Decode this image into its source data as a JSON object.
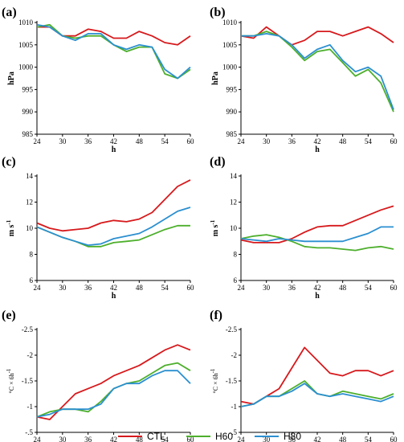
{
  "colors": {
    "CTL": "#d7191c",
    "H60": "#4daf2c",
    "H80": "#2b8fd0"
  },
  "legend": {
    "placement": "bottom-center",
    "entries": [
      {
        "name": "CTL",
        "color": "#d7191c"
      },
      {
        "name": "H60",
        "color": "#4daf2c"
      },
      {
        "name": "H80",
        "color": "#2b8fd0"
      }
    ]
  },
  "chart_data": [
    {
      "label": "(a)",
      "type": "line",
      "xlabel": "h",
      "ylabel": "hPa",
      "ylabel_sub": "",
      "ylim": [
        985,
        1010
      ],
      "yticks": [
        985,
        990,
        995,
        1000,
        1005,
        1010
      ],
      "ytick_labels": [
        "985",
        "990",
        "995",
        "1000",
        "1005",
        "1010"
      ],
      "xlim": [
        24,
        60
      ],
      "xticks": [
        24,
        30,
        36,
        42,
        48,
        54,
        60
      ],
      "series": [
        {
          "name": "CTL",
          "x": [
            24,
            27,
            30,
            33,
            36,
            39,
            42,
            45,
            48,
            51,
            54,
            57,
            60
          ],
          "y": [
            1009,
            1009,
            1007,
            1007,
            1008.5,
            1008,
            1006.5,
            1006.5,
            1008,
            1007,
            1005.5,
            1005,
            1007
          ]
        },
        {
          "name": "H60",
          "x": [
            24,
            27,
            30,
            33,
            36,
            39,
            42,
            45,
            48,
            51,
            54,
            57,
            60
          ],
          "y": [
            1009,
            1009.5,
            1007,
            1006.5,
            1007,
            1007,
            1005,
            1003.5,
            1004.5,
            1004.5,
            998.5,
            997.5,
            999.5
          ]
        },
        {
          "name": "H80",
          "x": [
            24,
            27,
            30,
            33,
            36,
            39,
            42,
            45,
            48,
            51,
            54,
            57,
            60
          ],
          "y": [
            1009.5,
            1009,
            1007,
            1006,
            1007.5,
            1007.5,
            1005,
            1004,
            1005,
            1004.5,
            999.5,
            997.5,
            1000
          ]
        }
      ]
    },
    {
      "label": "(b)",
      "type": "line",
      "xlabel": "h",
      "ylabel": "hPa",
      "ylabel_sub": "",
      "ylim": [
        985,
        1010
      ],
      "yticks": [
        985,
        990,
        995,
        1000,
        1005,
        1010
      ],
      "ytick_labels": [
        "985",
        "990",
        "995",
        "1000",
        "1005",
        "1010"
      ],
      "xlim": [
        24,
        60
      ],
      "xticks": [
        24,
        30,
        36,
        42,
        48,
        54,
        60
      ],
      "series": [
        {
          "name": "CTL",
          "x": [
            24,
            27,
            30,
            33,
            36,
            39,
            42,
            45,
            48,
            51,
            54,
            57,
            60
          ],
          "y": [
            1007,
            1006.5,
            1009,
            1007,
            1005,
            1006,
            1008,
            1008,
            1007,
            1008,
            1009,
            1007.5,
            1005.5
          ]
        },
        {
          "name": "H60",
          "x": [
            24,
            27,
            30,
            33,
            36,
            39,
            42,
            45,
            48,
            51,
            54,
            57,
            60
          ],
          "y": [
            1007,
            1007,
            1008,
            1007,
            1004.5,
            1001.5,
            1003.5,
            1004,
            1001,
            998,
            999.5,
            996.5,
            990
          ]
        },
        {
          "name": "H80",
          "x": [
            24,
            27,
            30,
            33,
            36,
            39,
            42,
            45,
            48,
            51,
            54,
            57,
            60
          ],
          "y": [
            1007,
            1007,
            1007.5,
            1007,
            1005,
            1002,
            1004,
            1005,
            1001.5,
            999,
            1000,
            998,
            990.5
          ]
        }
      ]
    },
    {
      "label": "(c)",
      "type": "line",
      "xlabel": "h",
      "ylabel": "m s",
      "ylabel_sub": "-1",
      "ylim": [
        6,
        14
      ],
      "yticks": [
        6,
        8,
        10,
        12,
        14
      ],
      "ytick_labels": [
        "6",
        "8",
        "10",
        "12",
        "14"
      ],
      "xlim": [
        24,
        60
      ],
      "xticks": [
        24,
        30,
        36,
        42,
        48,
        54,
        60
      ],
      "series": [
        {
          "name": "CTL",
          "x": [
            24,
            27,
            30,
            33,
            36,
            39,
            42,
            45,
            48,
            51,
            54,
            57,
            60
          ],
          "y": [
            10.4,
            10.0,
            9.8,
            9.9,
            10.0,
            10.4,
            10.6,
            10.5,
            10.7,
            11.2,
            12.2,
            13.2,
            13.7
          ]
        },
        {
          "name": "H60",
          "x": [
            24,
            27,
            30,
            33,
            36,
            39,
            42,
            45,
            48,
            51,
            54,
            57,
            60
          ],
          "y": [
            10.1,
            9.7,
            9.3,
            9.0,
            8.6,
            8.6,
            8.9,
            9.0,
            9.1,
            9.5,
            9.9,
            10.2,
            10.2
          ]
        },
        {
          "name": "H80",
          "x": [
            24,
            27,
            30,
            33,
            36,
            39,
            42,
            45,
            48,
            51,
            54,
            57,
            60
          ],
          "y": [
            10.1,
            9.7,
            9.3,
            9.0,
            8.7,
            8.8,
            9.2,
            9.4,
            9.6,
            10.1,
            10.7,
            11.3,
            11.6
          ]
        }
      ]
    },
    {
      "label": "(d)",
      "type": "line",
      "xlabel": "h",
      "ylabel": "m s",
      "ylabel_sub": "-1",
      "ylim": [
        6,
        14
      ],
      "yticks": [
        6,
        8,
        10,
        12,
        14
      ],
      "ytick_labels": [
        "6",
        "8",
        "10",
        "12",
        "14"
      ],
      "xlim": [
        24,
        60
      ],
      "xticks": [
        24,
        30,
        36,
        42,
        48,
        54,
        60
      ],
      "series": [
        {
          "name": "CTL",
          "x": [
            24,
            27,
            30,
            33,
            36,
            39,
            42,
            45,
            48,
            51,
            54,
            57,
            60
          ],
          "y": [
            9.1,
            8.9,
            8.9,
            8.9,
            9.2,
            9.7,
            10.1,
            10.2,
            10.2,
            10.6,
            11.0,
            11.4,
            11.7
          ]
        },
        {
          "name": "H60",
          "x": [
            24,
            27,
            30,
            33,
            36,
            39,
            42,
            45,
            48,
            51,
            54,
            57,
            60
          ],
          "y": [
            9.2,
            9.4,
            9.5,
            9.3,
            9.0,
            8.6,
            8.5,
            8.5,
            8.4,
            8.3,
            8.5,
            8.6,
            8.4
          ]
        },
        {
          "name": "H80",
          "x": [
            24,
            27,
            30,
            33,
            36,
            39,
            42,
            45,
            48,
            51,
            54,
            57,
            60
          ],
          "y": [
            9.2,
            9.1,
            9.0,
            9.2,
            9.1,
            9.0,
            9.0,
            9.0,
            9.0,
            9.3,
            9.6,
            10.1,
            10.1
          ]
        }
      ]
    },
    {
      "label": "(e)",
      "type": "line",
      "xlabel": "h",
      "ylabel": "°C × 6h",
      "ylabel_sub": "-1",
      "ylim": [
        -0.5,
        -2.5
      ],
      "yticks": [
        -0.5,
        -1.0,
        -1.5,
        -2.0,
        -2.5
      ],
      "ytick_labels": [
        "-.5",
        "-1",
        "-1.5",
        "-2",
        "-2.5"
      ],
      "xlim": [
        24,
        60
      ],
      "xticks": [
        24,
        30,
        36,
        42,
        48,
        54,
        60
      ],
      "series": [
        {
          "name": "CTL",
          "x": [
            24,
            27,
            30,
            33,
            36,
            39,
            42,
            45,
            48,
            51,
            54,
            57,
            60
          ],
          "y": [
            -0.8,
            -0.75,
            -1.0,
            -1.25,
            -1.35,
            -1.45,
            -1.6,
            -1.7,
            -1.8,
            -1.95,
            -2.1,
            -2.2,
            -2.1
          ]
        },
        {
          "name": "H60",
          "x": [
            24,
            27,
            30,
            33,
            36,
            39,
            42,
            45,
            48,
            51,
            54,
            57,
            60
          ],
          "y": [
            -0.8,
            -0.9,
            -0.95,
            -0.95,
            -0.9,
            -1.1,
            -1.35,
            -1.45,
            -1.5,
            -1.65,
            -1.8,
            -1.85,
            -1.7
          ]
        },
        {
          "name": "H80",
          "x": [
            24,
            27,
            30,
            33,
            36,
            39,
            42,
            45,
            48,
            51,
            54,
            57,
            60
          ],
          "y": [
            -0.8,
            -0.85,
            -0.95,
            -0.95,
            -0.95,
            -1.05,
            -1.35,
            -1.45,
            -1.45,
            -1.6,
            -1.7,
            -1.7,
            -1.45
          ]
        }
      ]
    },
    {
      "label": "(f)",
      "type": "line",
      "xlabel": "h",
      "ylabel": "°C × 6h",
      "ylabel_sub": "-1",
      "ylim": [
        -0.5,
        -2.5
      ],
      "yticks": [
        -0.5,
        -1.0,
        -1.5,
        -2.0,
        -2.5
      ],
      "ytick_labels": [
        "-.5",
        "-1",
        "-1.5",
        "-2",
        "-2.5"
      ],
      "xlim": [
        24,
        60
      ],
      "xticks": [
        24,
        30,
        36,
        42,
        48,
        54,
        60
      ],
      "series": [
        {
          "name": "CTL",
          "x": [
            24,
            27,
            30,
            33,
            36,
            39,
            42,
            45,
            48,
            51,
            54,
            57,
            60
          ],
          "y": [
            -1.1,
            -1.05,
            -1.2,
            -1.35,
            -1.75,
            -2.15,
            -1.9,
            -1.65,
            -1.6,
            -1.7,
            -1.7,
            -1.6,
            -1.7
          ]
        },
        {
          "name": "H60",
          "x": [
            24,
            27,
            30,
            33,
            36,
            39,
            42,
            45,
            48,
            51,
            54,
            57,
            60
          ],
          "y": [
            -1.0,
            -1.05,
            -1.2,
            -1.2,
            -1.35,
            -1.5,
            -1.25,
            -1.2,
            -1.3,
            -1.25,
            -1.2,
            -1.15,
            -1.25
          ]
        },
        {
          "name": "H80",
          "x": [
            24,
            27,
            30,
            33,
            36,
            39,
            42,
            45,
            48,
            51,
            54,
            57,
            60
          ],
          "y": [
            -1.0,
            -1.05,
            -1.2,
            -1.2,
            -1.3,
            -1.45,
            -1.25,
            -1.2,
            -1.25,
            -1.2,
            -1.15,
            -1.1,
            -1.2
          ]
        }
      ]
    }
  ]
}
